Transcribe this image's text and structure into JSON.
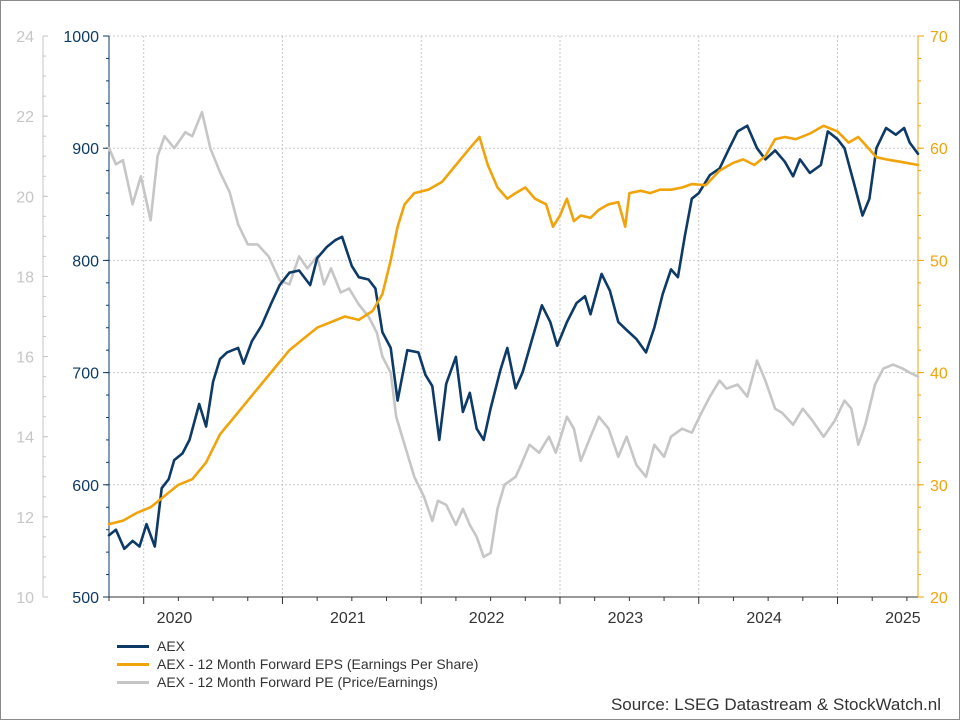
{
  "chart_data": {
    "type": "line",
    "x_axis": {
      "tick_labels": [
        "2020",
        "2021",
        "2022",
        "2023",
        "2024",
        "2025"
      ],
      "range": [
        2019.75,
        2025.58
      ]
    },
    "y_axes": {
      "pe": {
        "range": [
          10,
          24
        ],
        "ticks": [
          "10",
          "12",
          "14",
          "16",
          "18",
          "20",
          "22",
          "24"
        ],
        "color": "#c6c6c6"
      },
      "aex": {
        "range": [
          500,
          1000
        ],
        "ticks": [
          "500",
          "600",
          "700",
          "800",
          "900",
          "1000"
        ],
        "color": "#0d3a66"
      },
      "eps": {
        "range": [
          20,
          70
        ],
        "ticks": [
          "20",
          "30",
          "40",
          "50",
          "60",
          "70"
        ],
        "color": "#f0a30a"
      }
    },
    "grid": true,
    "legend_position": "bottom-left",
    "series": [
      {
        "name": "AEX",
        "axis": "aex",
        "color": "#0d3a66",
        "points": [
          [
            2019.75,
            555
          ],
          [
            2019.8,
            560
          ],
          [
            2019.86,
            543
          ],
          [
            2019.92,
            550
          ],
          [
            2019.97,
            545
          ],
          [
            2020.02,
            565
          ],
          [
            2020.08,
            545
          ],
          [
            2020.13,
            597
          ],
          [
            2020.18,
            605
          ],
          [
            2020.22,
            622
          ],
          [
            2020.28,
            628
          ],
          [
            2020.33,
            640
          ],
          [
            2020.4,
            672
          ],
          [
            2020.45,
            652
          ],
          [
            2020.5,
            692
          ],
          [
            2020.55,
            712
          ],
          [
            2020.6,
            718
          ],
          [
            2020.68,
            722
          ],
          [
            2020.72,
            708
          ],
          [
            2020.78,
            728
          ],
          [
            2020.85,
            742
          ],
          [
            2020.92,
            762
          ],
          [
            2020.98,
            778
          ],
          [
            2021.05,
            789
          ],
          [
            2021.12,
            791
          ],
          [
            2021.2,
            778
          ],
          [
            2021.25,
            802
          ],
          [
            2021.32,
            812
          ],
          [
            2021.38,
            818
          ],
          [
            2021.43,
            821
          ],
          [
            2021.5,
            795
          ],
          [
            2021.55,
            785
          ],
          [
            2021.62,
            783
          ],
          [
            2021.67,
            775
          ],
          [
            2021.72,
            736
          ],
          [
            2021.78,
            722
          ],
          [
            2021.83,
            675
          ],
          [
            2021.9,
            720
          ],
          [
            2021.98,
            718
          ],
          [
            2022.03,
            698
          ],
          [
            2022.08,
            688
          ],
          [
            2022.13,
            640
          ],
          [
            2022.18,
            690
          ],
          [
            2022.25,
            714
          ],
          [
            2022.3,
            665
          ],
          [
            2022.35,
            682
          ],
          [
            2022.4,
            650
          ],
          [
            2022.45,
            640
          ],
          [
            2022.5,
            668
          ],
          [
            2022.57,
            702
          ],
          [
            2022.62,
            722
          ],
          [
            2022.68,
            686
          ],
          [
            2022.73,
            700
          ],
          [
            2022.8,
            730
          ],
          [
            2022.87,
            760
          ],
          [
            2022.93,
            745
          ],
          [
            2022.98,
            724
          ],
          [
            2023.05,
            745
          ],
          [
            2023.12,
            762
          ],
          [
            2023.18,
            768
          ],
          [
            2023.22,
            752
          ],
          [
            2023.3,
            788
          ],
          [
            2023.36,
            773
          ],
          [
            2023.42,
            745
          ],
          [
            2023.48,
            738
          ],
          [
            2023.55,
            730
          ],
          [
            2023.62,
            718
          ],
          [
            2023.68,
            740
          ],
          [
            2023.74,
            770
          ],
          [
            2023.8,
            792
          ],
          [
            2023.85,
            785
          ],
          [
            2023.9,
            822
          ],
          [
            2023.95,
            855
          ],
          [
            2024.0,
            860
          ],
          [
            2024.08,
            876
          ],
          [
            2024.15,
            882
          ],
          [
            2024.22,
            900
          ],
          [
            2024.28,
            915
          ],
          [
            2024.35,
            920
          ],
          [
            2024.42,
            900
          ],
          [
            2024.48,
            890
          ],
          [
            2024.55,
            898
          ],
          [
            2024.62,
            888
          ],
          [
            2024.68,
            875
          ],
          [
            2024.73,
            890
          ],
          [
            2024.8,
            878
          ],
          [
            2024.88,
            885
          ],
          [
            2024.93,
            915
          ],
          [
            2025.0,
            908
          ],
          [
            2025.05,
            900
          ],
          [
            2025.12,
            868
          ],
          [
            2025.18,
            840
          ],
          [
            2025.23,
            855
          ],
          [
            2025.28,
            900
          ],
          [
            2025.35,
            918
          ],
          [
            2025.42,
            912
          ],
          [
            2025.48,
            918
          ],
          [
            2025.52,
            905
          ],
          [
            2025.58,
            895
          ]
        ]
      },
      {
        "name": "AEX - 12 Month Forward EPS (Earnings Per Share)",
        "axis": "eps",
        "color": "#f0a30a",
        "points": [
          [
            2019.75,
            26.5
          ],
          [
            2019.85,
            26.8
          ],
          [
            2019.95,
            27.5
          ],
          [
            2020.05,
            28.0
          ],
          [
            2020.15,
            29.0
          ],
          [
            2020.25,
            30.0
          ],
          [
            2020.35,
            30.5
          ],
          [
            2020.45,
            32.0
          ],
          [
            2020.55,
            34.5
          ],
          [
            2020.65,
            36.0
          ],
          [
            2020.75,
            37.5
          ],
          [
            2020.85,
            39.0
          ],
          [
            2020.95,
            40.5
          ],
          [
            2021.05,
            42.0
          ],
          [
            2021.15,
            43.0
          ],
          [
            2021.25,
            44.0
          ],
          [
            2021.35,
            44.5
          ],
          [
            2021.45,
            45.0
          ],
          [
            2021.55,
            44.7
          ],
          [
            2021.65,
            45.5
          ],
          [
            2021.72,
            47.0
          ],
          [
            2021.78,
            50.0
          ],
          [
            2021.83,
            53.0
          ],
          [
            2021.88,
            55.0
          ],
          [
            2021.95,
            56.0
          ],
          [
            2022.05,
            56.3
          ],
          [
            2022.15,
            57.0
          ],
          [
            2022.25,
            58.5
          ],
          [
            2022.35,
            60.0
          ],
          [
            2022.42,
            61.0
          ],
          [
            2022.48,
            58.5
          ],
          [
            2022.55,
            56.5
          ],
          [
            2022.62,
            55.5
          ],
          [
            2022.68,
            56.0
          ],
          [
            2022.75,
            56.5
          ],
          [
            2022.82,
            55.5
          ],
          [
            2022.9,
            55.0
          ],
          [
            2022.95,
            53.0
          ],
          [
            2023.0,
            54.0
          ],
          [
            2023.05,
            55.5
          ],
          [
            2023.1,
            53.5
          ],
          [
            2023.15,
            54.0
          ],
          [
            2023.22,
            53.8
          ],
          [
            2023.28,
            54.5
          ],
          [
            2023.35,
            55.0
          ],
          [
            2023.42,
            55.2
          ],
          [
            2023.47,
            53.0
          ],
          [
            2023.5,
            56.0
          ],
          [
            2023.58,
            56.2
          ],
          [
            2023.65,
            56.0
          ],
          [
            2023.72,
            56.3
          ],
          [
            2023.8,
            56.3
          ],
          [
            2023.88,
            56.5
          ],
          [
            2023.95,
            56.8
          ],
          [
            2024.05,
            56.7
          ],
          [
            2024.15,
            58.0
          ],
          [
            2024.25,
            58.7
          ],
          [
            2024.32,
            59.0
          ],
          [
            2024.4,
            58.5
          ],
          [
            2024.48,
            59.3
          ],
          [
            2024.55,
            60.8
          ],
          [
            2024.62,
            61.0
          ],
          [
            2024.7,
            60.8
          ],
          [
            2024.8,
            61.3
          ],
          [
            2024.9,
            62.0
          ],
          [
            2025.0,
            61.5
          ],
          [
            2025.08,
            60.5
          ],
          [
            2025.15,
            61.0
          ],
          [
            2025.2,
            60.3
          ],
          [
            2025.28,
            59.2
          ],
          [
            2025.35,
            59.0
          ],
          [
            2025.45,
            58.8
          ],
          [
            2025.58,
            58.5
          ]
        ]
      },
      {
        "name": "AEX - 12 Month Forward PE (Price/Earnings)",
        "axis": "pe",
        "color": "#c6c6c6",
        "points": [
          [
            2019.75,
            21.2
          ],
          [
            2019.8,
            20.8
          ],
          [
            2019.85,
            20.9
          ],
          [
            2019.92,
            19.8
          ],
          [
            2019.98,
            20.5
          ],
          [
            2020.05,
            19.4
          ],
          [
            2020.1,
            21.0
          ],
          [
            2020.15,
            21.5
          ],
          [
            2020.22,
            21.2
          ],
          [
            2020.3,
            21.6
          ],
          [
            2020.35,
            21.5
          ],
          [
            2020.42,
            22.1
          ],
          [
            2020.48,
            21.2
          ],
          [
            2020.55,
            20.6
          ],
          [
            2020.62,
            20.1
          ],
          [
            2020.68,
            19.3
          ],
          [
            2020.75,
            18.8
          ],
          [
            2020.82,
            18.8
          ],
          [
            2020.9,
            18.5
          ],
          [
            2020.98,
            17.9
          ],
          [
            2021.05,
            17.8
          ],
          [
            2021.12,
            18.5
          ],
          [
            2021.18,
            18.2
          ],
          [
            2021.25,
            18.5
          ],
          [
            2021.3,
            17.8
          ],
          [
            2021.35,
            18.2
          ],
          [
            2021.42,
            17.6
          ],
          [
            2021.48,
            17.7
          ],
          [
            2021.55,
            17.3
          ],
          [
            2021.62,
            17.0
          ],
          [
            2021.68,
            16.6
          ],
          [
            2021.72,
            16.0
          ],
          [
            2021.78,
            15.6
          ],
          [
            2021.82,
            14.5
          ],
          [
            2021.88,
            13.8
          ],
          [
            2021.95,
            13.0
          ],
          [
            2022.02,
            12.5
          ],
          [
            2022.08,
            11.9
          ],
          [
            2022.12,
            12.4
          ],
          [
            2022.18,
            12.3
          ],
          [
            2022.25,
            11.8
          ],
          [
            2022.3,
            12.2
          ],
          [
            2022.35,
            11.8
          ],
          [
            2022.4,
            11.5
          ],
          [
            2022.45,
            11.0
          ],
          [
            2022.5,
            11.1
          ],
          [
            2022.55,
            12.2
          ],
          [
            2022.6,
            12.8
          ],
          [
            2022.68,
            13.0
          ],
          [
            2022.72,
            13.3
          ],
          [
            2022.78,
            13.8
          ],
          [
            2022.85,
            13.6
          ],
          [
            2022.92,
            14.0
          ],
          [
            2022.97,
            13.6
          ],
          [
            2023.05,
            14.5
          ],
          [
            2023.1,
            14.2
          ],
          [
            2023.15,
            13.4
          ],
          [
            2023.22,
            14.0
          ],
          [
            2023.28,
            14.5
          ],
          [
            2023.35,
            14.2
          ],
          [
            2023.42,
            13.5
          ],
          [
            2023.48,
            14.0
          ],
          [
            2023.55,
            13.3
          ],
          [
            2023.62,
            13.0
          ],
          [
            2023.68,
            13.8
          ],
          [
            2023.75,
            13.5
          ],
          [
            2023.8,
            14.0
          ],
          [
            2023.88,
            14.2
          ],
          [
            2023.95,
            14.1
          ],
          [
            2024.02,
            14.6
          ],
          [
            2024.08,
            15.0
          ],
          [
            2024.15,
            15.4
          ],
          [
            2024.2,
            15.2
          ],
          [
            2024.28,
            15.3
          ],
          [
            2024.35,
            15.0
          ],
          [
            2024.42,
            15.9
          ],
          [
            2024.48,
            15.4
          ],
          [
            2024.55,
            14.7
          ],
          [
            2024.6,
            14.6
          ],
          [
            2024.68,
            14.3
          ],
          [
            2024.75,
            14.7
          ],
          [
            2024.82,
            14.4
          ],
          [
            2024.9,
            14.0
          ],
          [
            2024.98,
            14.4
          ],
          [
            2025.05,
            14.9
          ],
          [
            2025.1,
            14.7
          ],
          [
            2025.15,
            13.8
          ],
          [
            2025.2,
            14.3
          ],
          [
            2025.27,
            15.3
          ],
          [
            2025.33,
            15.7
          ],
          [
            2025.4,
            15.8
          ],
          [
            2025.47,
            15.7
          ],
          [
            2025.52,
            15.6
          ],
          [
            2025.58,
            15.5
          ]
        ]
      }
    ]
  },
  "legend": [
    {
      "label": "AEX",
      "color": "#0d3a66"
    },
    {
      "label": "AEX - 12 Month Forward EPS (Earnings Per Share)",
      "color": "#f0a30a"
    },
    {
      "label": "AEX - 12 Month Forward PE (Price/Earnings)",
      "color": "#c6c6c6"
    }
  ],
  "source": "Source: LSEG Datastream & StockWatch.nl"
}
